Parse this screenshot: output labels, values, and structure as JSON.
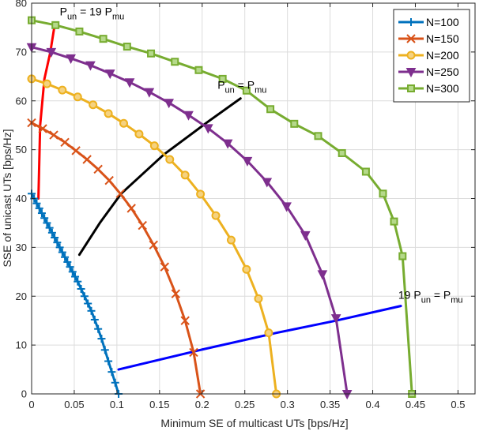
{
  "chart_data": {
    "type": "line",
    "title": "",
    "xlabel": "Minimum SE of multicast UTs [bps/Hz]",
    "ylabel": "SSE of unicast UTs [bps/Hz]",
    "xlim": [
      0,
      0.52
    ],
    "ylim": [
      0,
      80
    ],
    "xticks": [
      0,
      0.05,
      0.1,
      0.15,
      0.2,
      0.25,
      0.3,
      0.35,
      0.4,
      0.45,
      0.5
    ],
    "xtick_labels": [
      "0",
      "0.05",
      "0.1",
      "0.15",
      "0.2",
      "0.25",
      "0.3",
      "0.35",
      "0.4",
      "0.45",
      "0.5"
    ],
    "yticks": [
      0,
      10,
      20,
      30,
      40,
      50,
      60,
      70,
      80
    ],
    "ytick_labels": [
      "0",
      "10",
      "20",
      "30",
      "40",
      "50",
      "60",
      "70",
      "80"
    ],
    "grid": true,
    "legend_position": "top-right",
    "series": [
      {
        "name": "N=100",
        "color": "#0072BD",
        "marker": "plus",
        "x": [
          0,
          0.003,
          0.006,
          0.009,
          0.012,
          0.015,
          0.018,
          0.021,
          0.024,
          0.027,
          0.03,
          0.033,
          0.036,
          0.039,
          0.042,
          0.045,
          0.048,
          0.051,
          0.054,
          0.058,
          0.062,
          0.066,
          0.07,
          0.074,
          0.078,
          0.082,
          0.086,
          0.09,
          0.094,
          0.098,
          0.102
        ],
        "y": [
          41.0,
          40.0,
          39.0,
          38.0,
          37.0,
          36.0,
          35.0,
          34.0,
          33.0,
          32.0,
          31.0,
          30.0,
          29.0,
          28.0,
          27.0,
          26.0,
          25.0,
          24.0,
          23.0,
          21.5,
          20.0,
          18.5,
          17.0,
          15.2,
          13.3,
          11.3,
          9.0,
          6.7,
          4.5,
          2.3,
          0
        ]
      },
      {
        "name": "N=150",
        "color": "#D95319",
        "marker": "x",
        "x": [
          0,
          0.013,
          0.026,
          0.039,
          0.052,
          0.065,
          0.078,
          0.091,
          0.104,
          0.117,
          0.13,
          0.143,
          0.156,
          0.169,
          0.18,
          0.19,
          0.198
        ],
        "y": [
          55.5,
          54.3,
          53.0,
          51.5,
          49.8,
          48.0,
          46.0,
          43.7,
          41.0,
          38.0,
          34.5,
          30.5,
          26.0,
          20.5,
          15.0,
          8.5,
          0
        ]
      },
      {
        "name": "N=200",
        "color": "#EDB120",
        "marker": "circle",
        "x": [
          0,
          0.018,
          0.036,
          0.054,
          0.072,
          0.09,
          0.108,
          0.126,
          0.144,
          0.162,
          0.18,
          0.198,
          0.216,
          0.234,
          0.252,
          0.266,
          0.278,
          0.287
        ],
        "y": [
          64.5,
          63.5,
          62.2,
          60.8,
          59.2,
          57.4,
          55.4,
          53.2,
          50.8,
          48.0,
          44.8,
          40.9,
          36.5,
          31.5,
          25.5,
          19.5,
          12.5,
          0
        ]
      },
      {
        "name": "N=250",
        "color": "#7E2F8E",
        "marker": "triangle-down",
        "x": [
          0,
          0.023,
          0.046,
          0.069,
          0.092,
          0.115,
          0.138,
          0.161,
          0.184,
          0.207,
          0.23,
          0.253,
          0.276,
          0.299,
          0.321,
          0.341,
          0.357,
          0.37
        ],
        "y": [
          71.0,
          70.0,
          68.7,
          67.3,
          65.6,
          63.8,
          61.8,
          59.6,
          57.1,
          54.4,
          51.3,
          47.7,
          43.4,
          38.4,
          32.5,
          24.5,
          15.5,
          0
        ]
      },
      {
        "name": "N=300",
        "color": "#77AC30",
        "marker": "square",
        "x": [
          0,
          0.028,
          0.056,
          0.084,
          0.112,
          0.14,
          0.168,
          0.196,
          0.224,
          0.252,
          0.28,
          0.308,
          0.336,
          0.364,
          0.392,
          0.412,
          0.425,
          0.435,
          0.446
        ],
        "y": [
          76.5,
          75.5,
          74.2,
          72.7,
          71.1,
          69.7,
          68.0,
          66.3,
          64.5,
          62.1,
          58.3,
          55.3,
          52.8,
          49.3,
          45.5,
          41.0,
          35.3,
          28.2,
          0
        ]
      }
    ],
    "frontier_lines": [
      {
        "label": "P_un = 19 P_mu",
        "color": "#FF0000",
        "x": [
          0.008,
          0.01,
          0.015,
          0.022,
          0.027
        ],
        "y": [
          40.0,
          55.0,
          64.5,
          70.0,
          75.5
        ]
      },
      {
        "label": "P_un = P_mu",
        "color": "#000000",
        "x": [
          0.056,
          0.08,
          0.105,
          0.155,
          0.205,
          0.245
        ],
        "y": [
          28.5,
          35.0,
          41.0,
          49.0,
          55.5,
          60.5
        ]
      },
      {
        "label": "19 P_un = P_mu",
        "color": "#0000FF",
        "x": [
          0.102,
          0.198,
          0.287,
          0.357,
          0.433
        ],
        "y": [
          5.0,
          9.0,
          12.5,
          15.0,
          18.0
        ]
      }
    ],
    "annotations": [
      {
        "base": "P",
        "sub1": "un",
        "mid": " = 19 P",
        "sub2": "mu",
        "x": 0.033,
        "y": 77.5
      },
      {
        "base": "P",
        "sub1": "un",
        "mid": " = P",
        "sub2": "mu",
        "x": 0.218,
        "y": 62.5
      },
      {
        "base": "19 P",
        "sub1": "un",
        "mid": " = P",
        "sub2": "mu",
        "x": 0.43,
        "y": 19.5
      }
    ]
  }
}
